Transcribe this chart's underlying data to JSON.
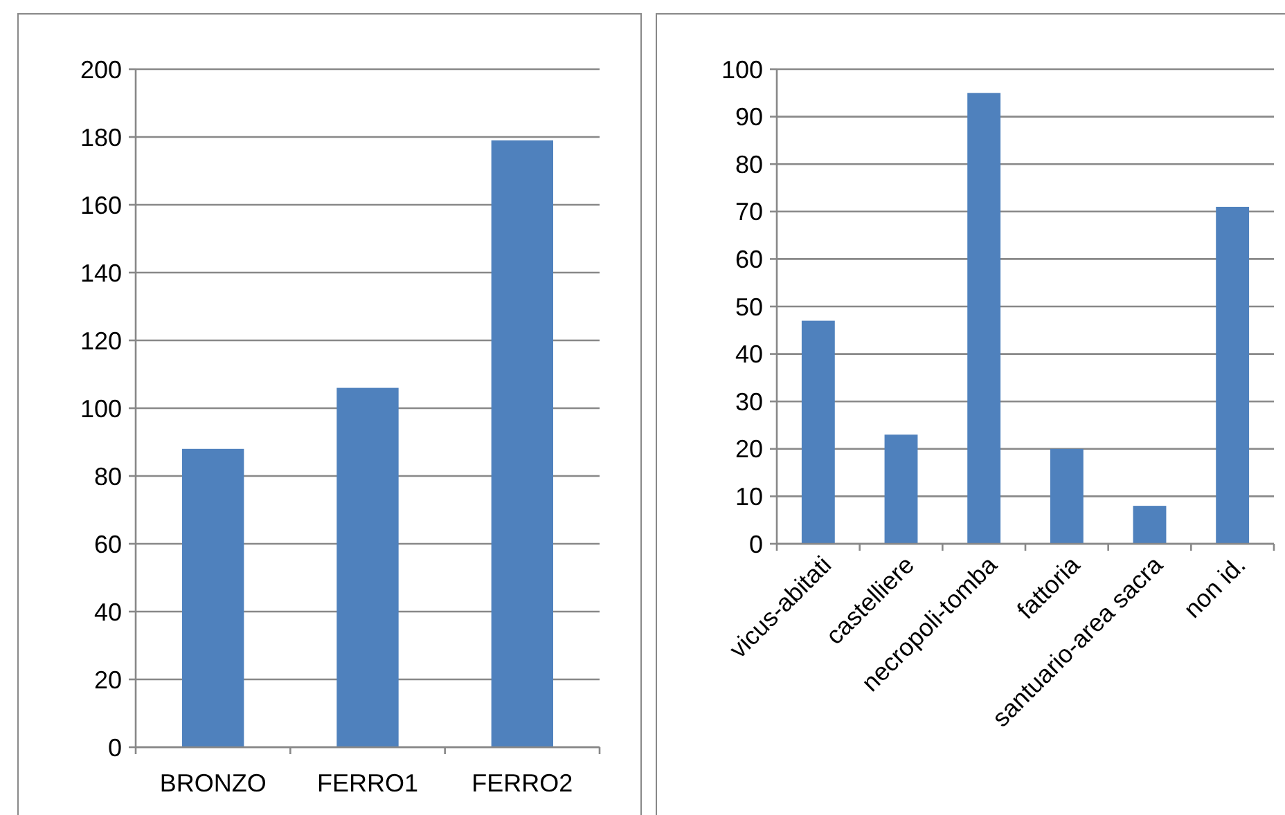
{
  "chart_data": [
    {
      "type": "bar",
      "categories": [
        "BRONZO",
        "FERRO1",
        "FERRO2"
      ],
      "values": [
        88,
        106,
        179
      ],
      "color": "#4f81bd",
      "ylim": [
        0,
        200
      ],
      "yticks": [
        0,
        20,
        40,
        60,
        80,
        100,
        120,
        140,
        160,
        180,
        200
      ],
      "grid": "y"
    },
    {
      "type": "bar",
      "categories": [
        "vicus-abitati",
        "castelliere",
        "necropoli-tomba",
        "fattoria",
        "santuario-area sacra",
        "non id."
      ],
      "values": [
        47,
        23,
        95,
        20,
        8,
        71
      ],
      "color": "#4f81bd",
      "ylim": [
        0,
        100
      ],
      "yticks": [
        0,
        10,
        20,
        30,
        40,
        50,
        60,
        70,
        80,
        90,
        100
      ],
      "grid": "y"
    }
  ]
}
